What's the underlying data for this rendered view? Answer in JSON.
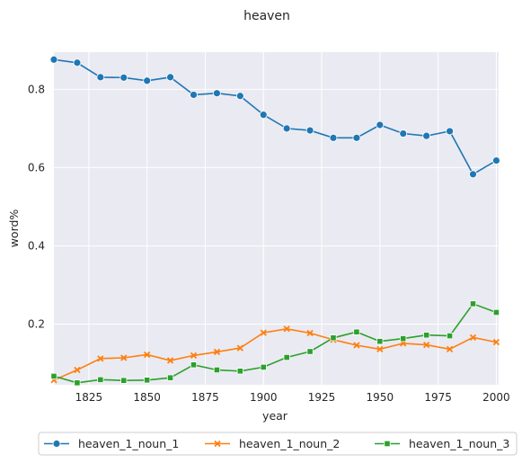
{
  "chart_data": {
    "type": "line",
    "title": "heaven",
    "xlabel": "year",
    "ylabel": "word%",
    "xlim": [
      1810,
      2001
    ],
    "ylim": [
      0.045,
      0.895
    ],
    "xticks": [
      1825,
      1850,
      1875,
      1900,
      1925,
      1950,
      1975,
      2000
    ],
    "yticks": [
      0.2,
      0.4,
      0.6,
      0.8
    ],
    "grid": true,
    "legend_position": "bottom-center",
    "x": [
      1810,
      1820,
      1830,
      1840,
      1850,
      1860,
      1870,
      1880,
      1890,
      1900,
      1910,
      1920,
      1930,
      1940,
      1950,
      1960,
      1970,
      1980,
      1990,
      2000
    ],
    "series": [
      {
        "name": "heaven_1_noun_1",
        "color": "#1f77b4",
        "marker": "circle",
        "values": [
          0.876,
          0.868,
          0.831,
          0.83,
          0.822,
          0.831,
          0.786,
          0.79,
          0.783,
          0.735,
          0.7,
          0.695,
          0.676,
          0.676,
          0.709,
          0.687,
          0.681,
          0.693,
          0.583,
          0.618
        ]
      },
      {
        "name": "heaven_1_noun_2",
        "color": "#ff7f0e",
        "marker": "x",
        "values": [
          0.057,
          0.083,
          0.112,
          0.114,
          0.122,
          0.107,
          0.12,
          0.129,
          0.139,
          0.178,
          0.188,
          0.177,
          0.16,
          0.146,
          0.136,
          0.151,
          0.147,
          0.136,
          0.166,
          0.154
        ]
      },
      {
        "name": "heaven_1_noun_3",
        "color": "#2ca02c",
        "marker": "square",
        "values": [
          0.067,
          0.05,
          0.058,
          0.056,
          0.057,
          0.063,
          0.096,
          0.083,
          0.08,
          0.09,
          0.115,
          0.13,
          0.165,
          0.18,
          0.156,
          0.163,
          0.172,
          0.17,
          0.252,
          0.23
        ]
      }
    ]
  }
}
